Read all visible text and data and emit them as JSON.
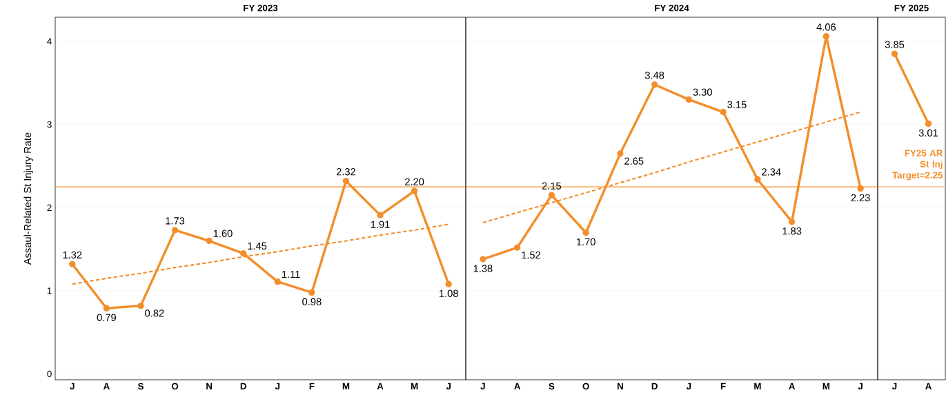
{
  "chart_data": [
    {
      "type": "line",
      "title": "FY 2023",
      "ylabel": "Assaul-Related St Injury Rate",
      "categories": [
        "J",
        "A",
        "S",
        "O",
        "N",
        "D",
        "J",
        "F",
        "M",
        "A",
        "M",
        "J"
      ],
      "ylim": [
        -0.07,
        4.29
      ],
      "yticks": [
        0,
        1,
        2,
        3,
        4
      ],
      "grid": "y",
      "marker": "circle",
      "line_style": "solid",
      "series": [
        {
          "color": "#f28e2b",
          "values": [
            1.32,
            0.79,
            0.82,
            1.73,
            1.6,
            1.45,
            1.11,
            0.98,
            2.32,
            1.91,
            2.2,
            1.08
          ],
          "value_labels": [
            "1.32",
            "0.79",
            "0.82",
            "1.73",
            "1.60",
            "1.45",
            "1.11",
            "0.98",
            "2.32",
            "1.91",
            "2.20",
            "1.08"
          ]
        },
        {
          "type": "line",
          "color": "#f28e2b",
          "line_style": "dashed",
          "marker": "none",
          "values": [
            1.08,
            1.15,
            1.21,
            1.28,
            1.34,
            1.41,
            1.47,
            1.54,
            1.6,
            1.67,
            1.73,
            1.8
          ]
        }
      ],
      "ref_lines": [
        {
          "axis": "y",
          "value": 2.25,
          "color": "#f28e2b"
        }
      ]
    },
    {
      "type": "line",
      "title": "FY 2024",
      "categories": [
        "J",
        "A",
        "S",
        "O",
        "N",
        "D",
        "J",
        "F",
        "M",
        "A",
        "M",
        "J"
      ],
      "ylim": [
        -0.07,
        4.29
      ],
      "yticks": [
        0,
        1,
        2,
        3,
        4
      ],
      "tick_labels": "x",
      "grid": "y",
      "marker": "circle",
      "line_style": "solid",
      "series": [
        {
          "color": "#f28e2b",
          "values": [
            1.38,
            1.52,
            2.15,
            1.7,
            2.65,
            3.48,
            3.3,
            3.15,
            2.34,
            1.83,
            4.06,
            2.23
          ],
          "value_labels": [
            "1.38",
            "1.52",
            "2.15",
            "1.70",
            "2.65",
            "3.48",
            "3.30",
            "3.15",
            "2.34",
            "1.83",
            "4.06",
            "2.23"
          ]
        },
        {
          "type": "line",
          "color": "#f28e2b",
          "line_style": "dashed",
          "marker": "none",
          "values": [
            1.82,
            1.94,
            2.06,
            2.18,
            2.3,
            2.42,
            2.55,
            2.67,
            2.79,
            2.91,
            3.03,
            3.15
          ]
        }
      ],
      "ref_lines": [
        {
          "axis": "y",
          "value": 2.25,
          "color": "#f28e2b"
        }
      ]
    },
    {
      "type": "line",
      "title": "FY 2025",
      "categories": [
        "J",
        "A"
      ],
      "ylim": [
        -0.07,
        4.29
      ],
      "yticks": [
        0,
        1,
        2,
        3,
        4
      ],
      "tick_labels": "x",
      "grid": "y",
      "marker": "circle",
      "line_style": "solid",
      "series": [
        {
          "color": "#f28e2b",
          "values": [
            3.85,
            3.01
          ],
          "value_labels": [
            "3.85",
            "3.01"
          ]
        }
      ],
      "ref_lines": [
        {
          "axis": "y",
          "value": 2.25,
          "color": "#f28e2b",
          "label": "FY25 AR St Inj Target=2.25"
        }
      ]
    }
  ]
}
